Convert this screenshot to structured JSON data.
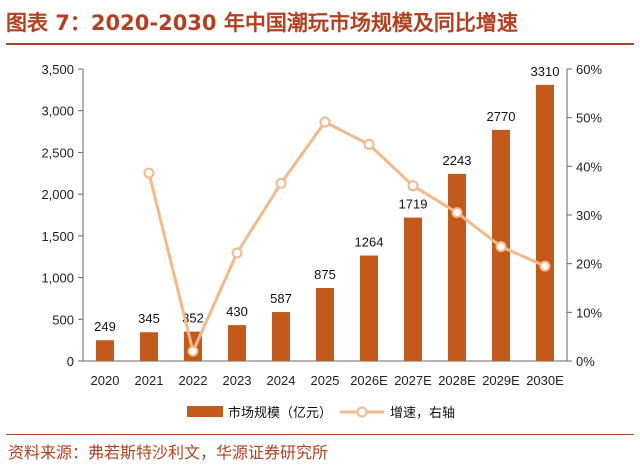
{
  "header": {
    "title": "图表 7：2020-2030 年中国潮玩市场规模及同比增速"
  },
  "footer": {
    "source": "资料来源：弗若斯特沙利文，华源证券研究所"
  },
  "colors": {
    "accent": "#b3401f",
    "bar": "#c35a1c",
    "line": "#f3b98c"
  },
  "chart_data": {
    "type": "bar",
    "categories": [
      "2020",
      "2021",
      "2022",
      "2023",
      "2024",
      "2025",
      "2026E",
      "2027E",
      "2028E",
      "2029E",
      "2030E"
    ],
    "series": [
      {
        "name": "市场规模（亿元）",
        "type": "bar",
        "axis": "left",
        "values": [
          249,
          345,
          352,
          430,
          587,
          875,
          1264,
          1719,
          2243,
          2770,
          3310
        ],
        "labels": [
          "249",
          "345",
          "352",
          "430",
          "587",
          "875",
          "1264",
          "1719",
          "2243",
          "2770",
          "3310"
        ]
      },
      {
        "name": "增速，右轴",
        "type": "line",
        "axis": "right",
        "values": [
          null,
          38.6,
          2.0,
          22.2,
          36.5,
          49.1,
          44.5,
          36.0,
          30.5,
          23.5,
          19.5
        ]
      }
    ],
    "y_left": {
      "min": 0,
      "max": 3500,
      "ticks": [
        "0",
        "500",
        "1,000",
        "1,500",
        "2,000",
        "2,500",
        "3,000",
        "3,500"
      ]
    },
    "y_right": {
      "min": 0,
      "max": 60,
      "ticks": [
        "0%",
        "10%",
        "20%",
        "30%",
        "40%",
        "50%",
        "60%"
      ]
    },
    "legend_position": "bottom",
    "grid": false
  }
}
